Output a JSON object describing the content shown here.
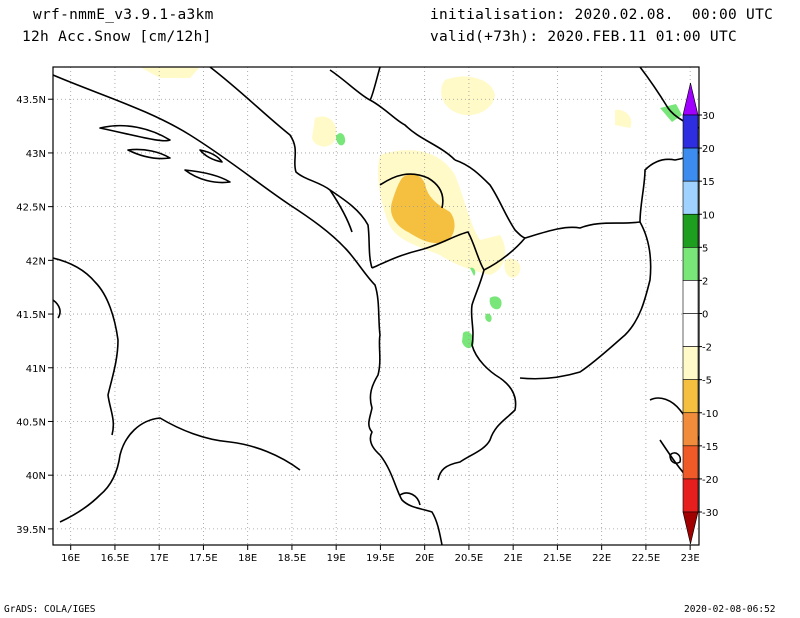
{
  "header": {
    "model": "wrf-nmmE_v3.9.1-a3km",
    "field": "12h Acc.Snow [cm/12h]",
    "initialisation": "initialisation: 2020.02.08.  00:00 UTC",
    "valid": "valid(+73h): 2020.FEB.11 01:00 UTC"
  },
  "footer": {
    "credit": "GrADS: COLA/IGES",
    "timestamp": "2020-02-08-06:52"
  },
  "map": {
    "lon_ticks": [
      "16E",
      "16.5E",
      "17E",
      "17.5E",
      "18E",
      "18.5E",
      "19E",
      "19.5E",
      "20E",
      "20.5E",
      "21E",
      "21.5E",
      "22E",
      "22.5E",
      "23E"
    ],
    "lat_ticks": [
      "43.5N",
      "43N",
      "42.5N",
      "42N",
      "41.5N",
      "41N",
      "40.5N",
      "40N",
      "39.5N"
    ],
    "lon_range": [
      15.8,
      23.1
    ],
    "lat_range": [
      39.35,
      43.8
    ],
    "grid": true
  },
  "legend": {
    "levels": [
      "30",
      "20",
      "15",
      "10",
      "5",
      "2",
      "0",
      "-2",
      "-5",
      "-10",
      "-15",
      "-20",
      "-30"
    ],
    "colors": {
      "c30": "#a000ff",
      "c20": "#2e2ee0",
      "c15": "#3c8cf0",
      "c10": "#a0d2ff",
      "c5": "#1e9e1e",
      "c2": "#78e678",
      "c0": "#ffffff",
      "cm2": "#fffac8",
      "cm5": "#f5c040",
      "cm10": "#f08c3c",
      "cm15": "#f05a28",
      "cm20": "#e61e1e",
      "cm30": "#a00000"
    }
  }
}
